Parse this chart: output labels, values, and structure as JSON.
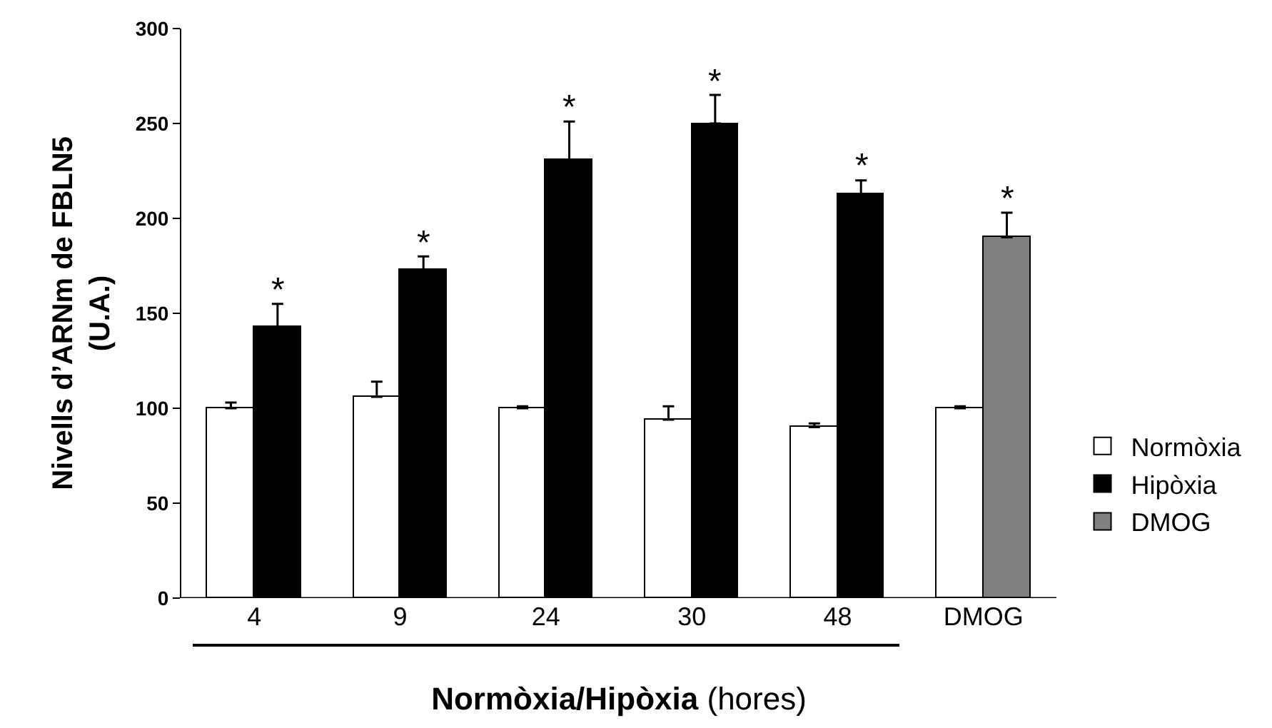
{
  "chart_data": {
    "type": "bar",
    "ylabel": "Nivells d’ARNm de FBLN5\n(U.A.)",
    "xlabel": "Normòxia/Hipòxia (hores)",
    "categories": [
      "4",
      "9",
      "24",
      "30",
      "48",
      "DMOG"
    ],
    "series": [
      {
        "name": "Normòxia",
        "color": "#ffffff",
        "values": [
          100,
          106,
          100,
          94,
          90,
          100
        ],
        "errors": [
          [
            100,
            103
          ],
          [
            106,
            114
          ],
          [
            100,
            101
          ],
          [
            94,
            101
          ],
          [
            90,
            92
          ],
          [
            100,
            101
          ]
        ]
      },
      {
        "name": "Hipòxia",
        "color": "#000000",
        "values": [
          143,
          173,
          231,
          250,
          213,
          null
        ],
        "errors": [
          [
            143,
            155
          ],
          [
            173,
            180
          ],
          [
            231,
            251
          ],
          [
            250,
            265
          ],
          [
            213,
            220
          ],
          null
        ],
        "value_labels": [
          "*",
          "*",
          "*",
          "*",
          "*",
          null
        ]
      },
      {
        "name": "DMOG",
        "color": "#808080",
        "values": [
          null,
          null,
          null,
          null,
          null,
          190
        ],
        "errors": [
          null,
          null,
          null,
          null,
          null,
          [
            190,
            203
          ]
        ],
        "value_labels": [
          null,
          null,
          null,
          null,
          null,
          "*"
        ]
      }
    ],
    "ylim": [
      0,
      300
    ],
    "yticks": [
      0,
      50,
      100,
      150,
      200,
      250,
      300
    ],
    "grid": false,
    "legend": "right"
  }
}
